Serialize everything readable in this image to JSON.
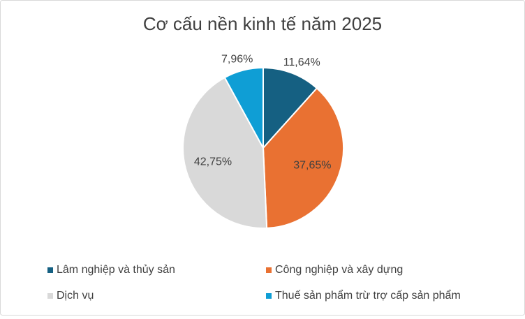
{
  "chart_data": {
    "type": "pie",
    "title": "Cơ cấu nền kinh tế năm 2025",
    "categories": [
      "Lâm nghiệp và thủy sản",
      "Công nghiệp và xây dựng",
      "Dịch vụ",
      "Thuế sản phẩm trừ trợ cấp sản phẩm"
    ],
    "values": [
      11.64,
      37.65,
      42.75,
      7.96
    ],
    "value_labels": [
      "11,64%",
      "37,65%",
      "42,75%",
      "7,96%"
    ],
    "colors": [
      "#156082",
      "#e97132",
      "#d9d9d9",
      "#0f9ed5"
    ],
    "legend": "bottom"
  }
}
